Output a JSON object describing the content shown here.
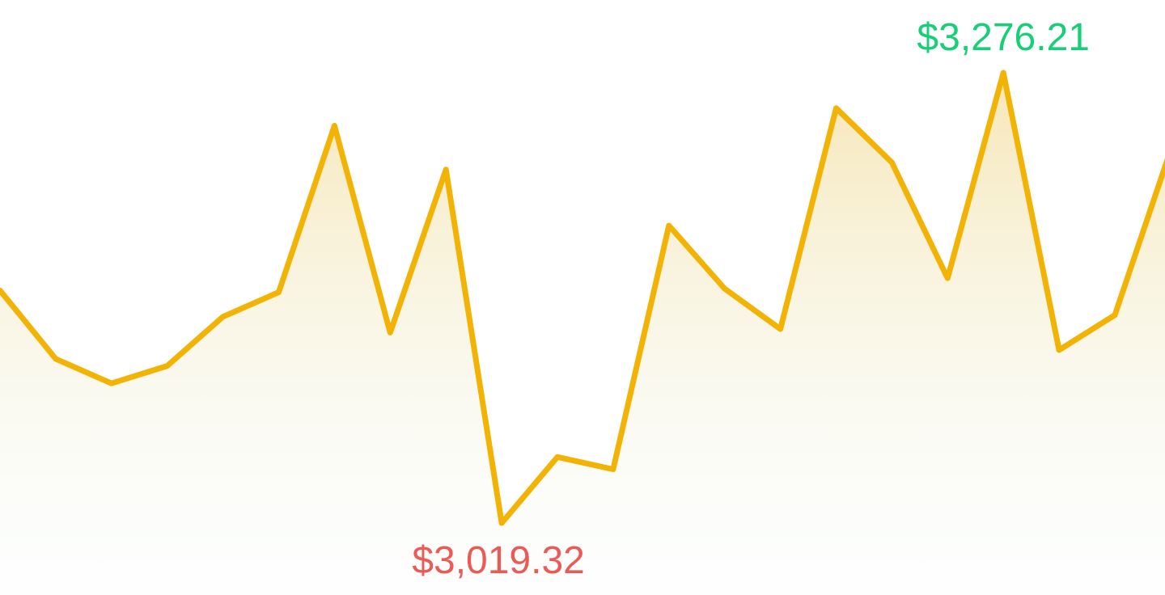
{
  "chart_data": {
    "type": "area",
    "title": "",
    "xlabel": "",
    "ylabel": "",
    "grid": false,
    "legend": "none",
    "series": [
      {
        "values": [
          3152,
          3113,
          3099,
          3109,
          3137,
          3151,
          3246,
          3128,
          3221,
          3019.32,
          3057,
          3050,
          3189,
          3153,
          3130,
          3256,
          3225,
          3159,
          3276.21,
          3118,
          3138,
          3232
        ]
      }
    ],
    "ylim": [
      3000,
      3300
    ],
    "annotations": {
      "max_label": "$3,276.21",
      "min_label": "$3,019.32"
    },
    "colors": {
      "line": "#f2b305",
      "fill_top": "#f0c95e",
      "fill_bottom": "#e3f3e9",
      "max_label": "#17cf77",
      "min_label": "#ec5a55"
    }
  }
}
